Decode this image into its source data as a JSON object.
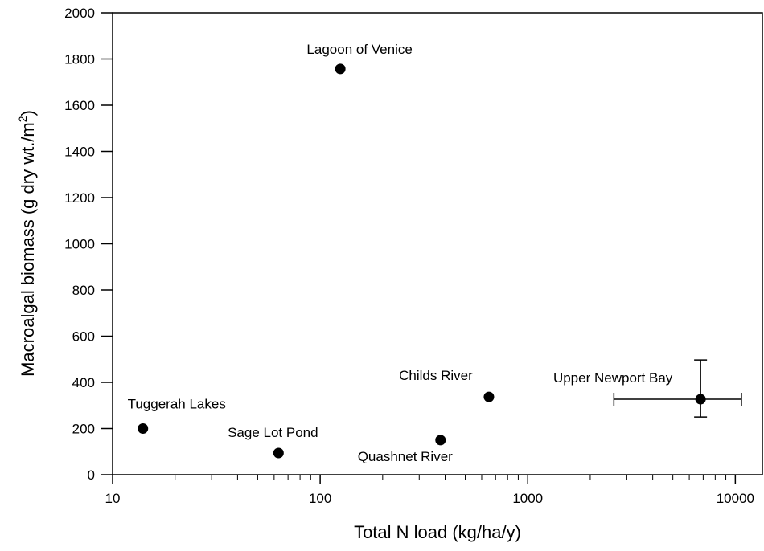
{
  "chart_data": {
    "type": "scatter",
    "xlabel": "Total N load (kg/ha/y)",
    "ylabel": [
      "Macroalgal biomass (g dry wt./m",
      "2",
      ")"
    ],
    "x_scale": "log",
    "xlim": [
      10,
      13500
    ],
    "ylim": [
      0,
      2000
    ],
    "xticks": [
      10,
      100,
      1000,
      10000
    ],
    "yticks": [
      0,
      200,
      400,
      600,
      800,
      1000,
      1200,
      1400,
      1600,
      1800,
      2000
    ],
    "color": "#000000",
    "labels": [
      "Tuggerah Lakes",
      "Sage Lot Pond",
      "Lagoon of Venice",
      "Quashnet River",
      "Childs River",
      "Upper Newport Bay"
    ],
    "x": [
      14,
      63,
      125,
      380,
      650,
      6800
    ],
    "y": [
      200,
      94,
      1757,
      150,
      337,
      327
    ],
    "x_range": [
      null,
      null,
      null,
      null,
      null,
      [
        2600,
        10700
      ]
    ],
    "y_range": [
      null,
      null,
      null,
      null,
      null,
      [
        250,
        497
      ]
    ]
  }
}
